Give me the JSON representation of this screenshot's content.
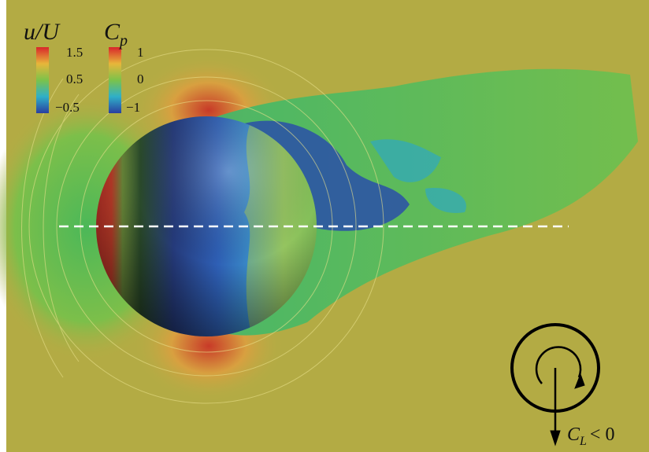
{
  "colorbars": [
    {
      "label": "u/U",
      "ticks": [
        "1.5",
        "0.5",
        "−0.5"
      ]
    },
    {
      "label": "C",
      "label_subscript": "p",
      "ticks": [
        "1",
        "0",
        "−1"
      ]
    }
  ],
  "annotation": {
    "symbol": "C",
    "subscript": "L",
    "relation": "< 0"
  }
}
